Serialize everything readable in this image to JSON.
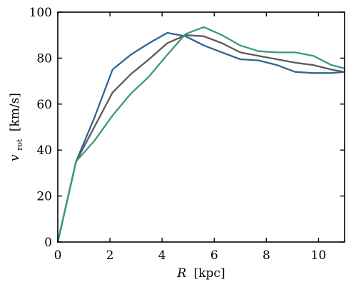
{
  "chart_data": {
    "type": "line",
    "title": "",
    "xlabel": {
      "symbol": "R",
      "unit": "[kpc]"
    },
    "ylabel": {
      "symbol": "v",
      "subscript": "rot",
      "unit": "[km/s]"
    },
    "xlim": [
      0,
      11
    ],
    "ylim": [
      0,
      100
    ],
    "xticks": [
      "0",
      "2",
      "4",
      "6",
      "8",
      "10"
    ],
    "yticks": [
      "0",
      "20",
      "40",
      "60",
      "80",
      "100"
    ],
    "grid": false,
    "legend": "none",
    "series": [
      {
        "color": "#2e6596",
        "x": [
          0,
          0.7,
          1.4,
          2.1,
          2.8,
          3.5,
          4.2,
          4.9,
          5.6,
          6.3,
          7.0,
          7.7,
          8.4,
          9.1,
          9.8,
          10.5,
          11.0
        ],
        "y": [
          0,
          35,
          54,
          75,
          81.5,
          86.5,
          91,
          89.5,
          85.5,
          82.5,
          79.5,
          79,
          77,
          74,
          73.5,
          73.5,
          74
        ]
      },
      {
        "color": "#5a5a5a",
        "x": [
          0,
          0.7,
          1.4,
          2.1,
          2.8,
          3.5,
          4.2,
          4.9,
          5.6,
          6.3,
          7.0,
          7.7,
          8.4,
          9.1,
          9.8,
          10.5,
          11.0
        ],
        "y": [
          0,
          35,
          50,
          65,
          73,
          79.5,
          86.5,
          90,
          89.5,
          86.5,
          82.5,
          81,
          79.5,
          78,
          77,
          75,
          74
        ]
      },
      {
        "color": "#3a9a7c",
        "x": [
          0,
          0.7,
          1.4,
          2.1,
          2.8,
          3.5,
          4.2,
          4.9,
          5.6,
          6.3,
          7.0,
          7.7,
          8.4,
          9.1,
          9.8,
          10.5,
          11.0
        ],
        "y": [
          0,
          35,
          44,
          55,
          64.5,
          72,
          81.5,
          90.5,
          93.5,
          90,
          85.5,
          83,
          82.5,
          82.5,
          81,
          77,
          75.5
        ]
      }
    ]
  }
}
